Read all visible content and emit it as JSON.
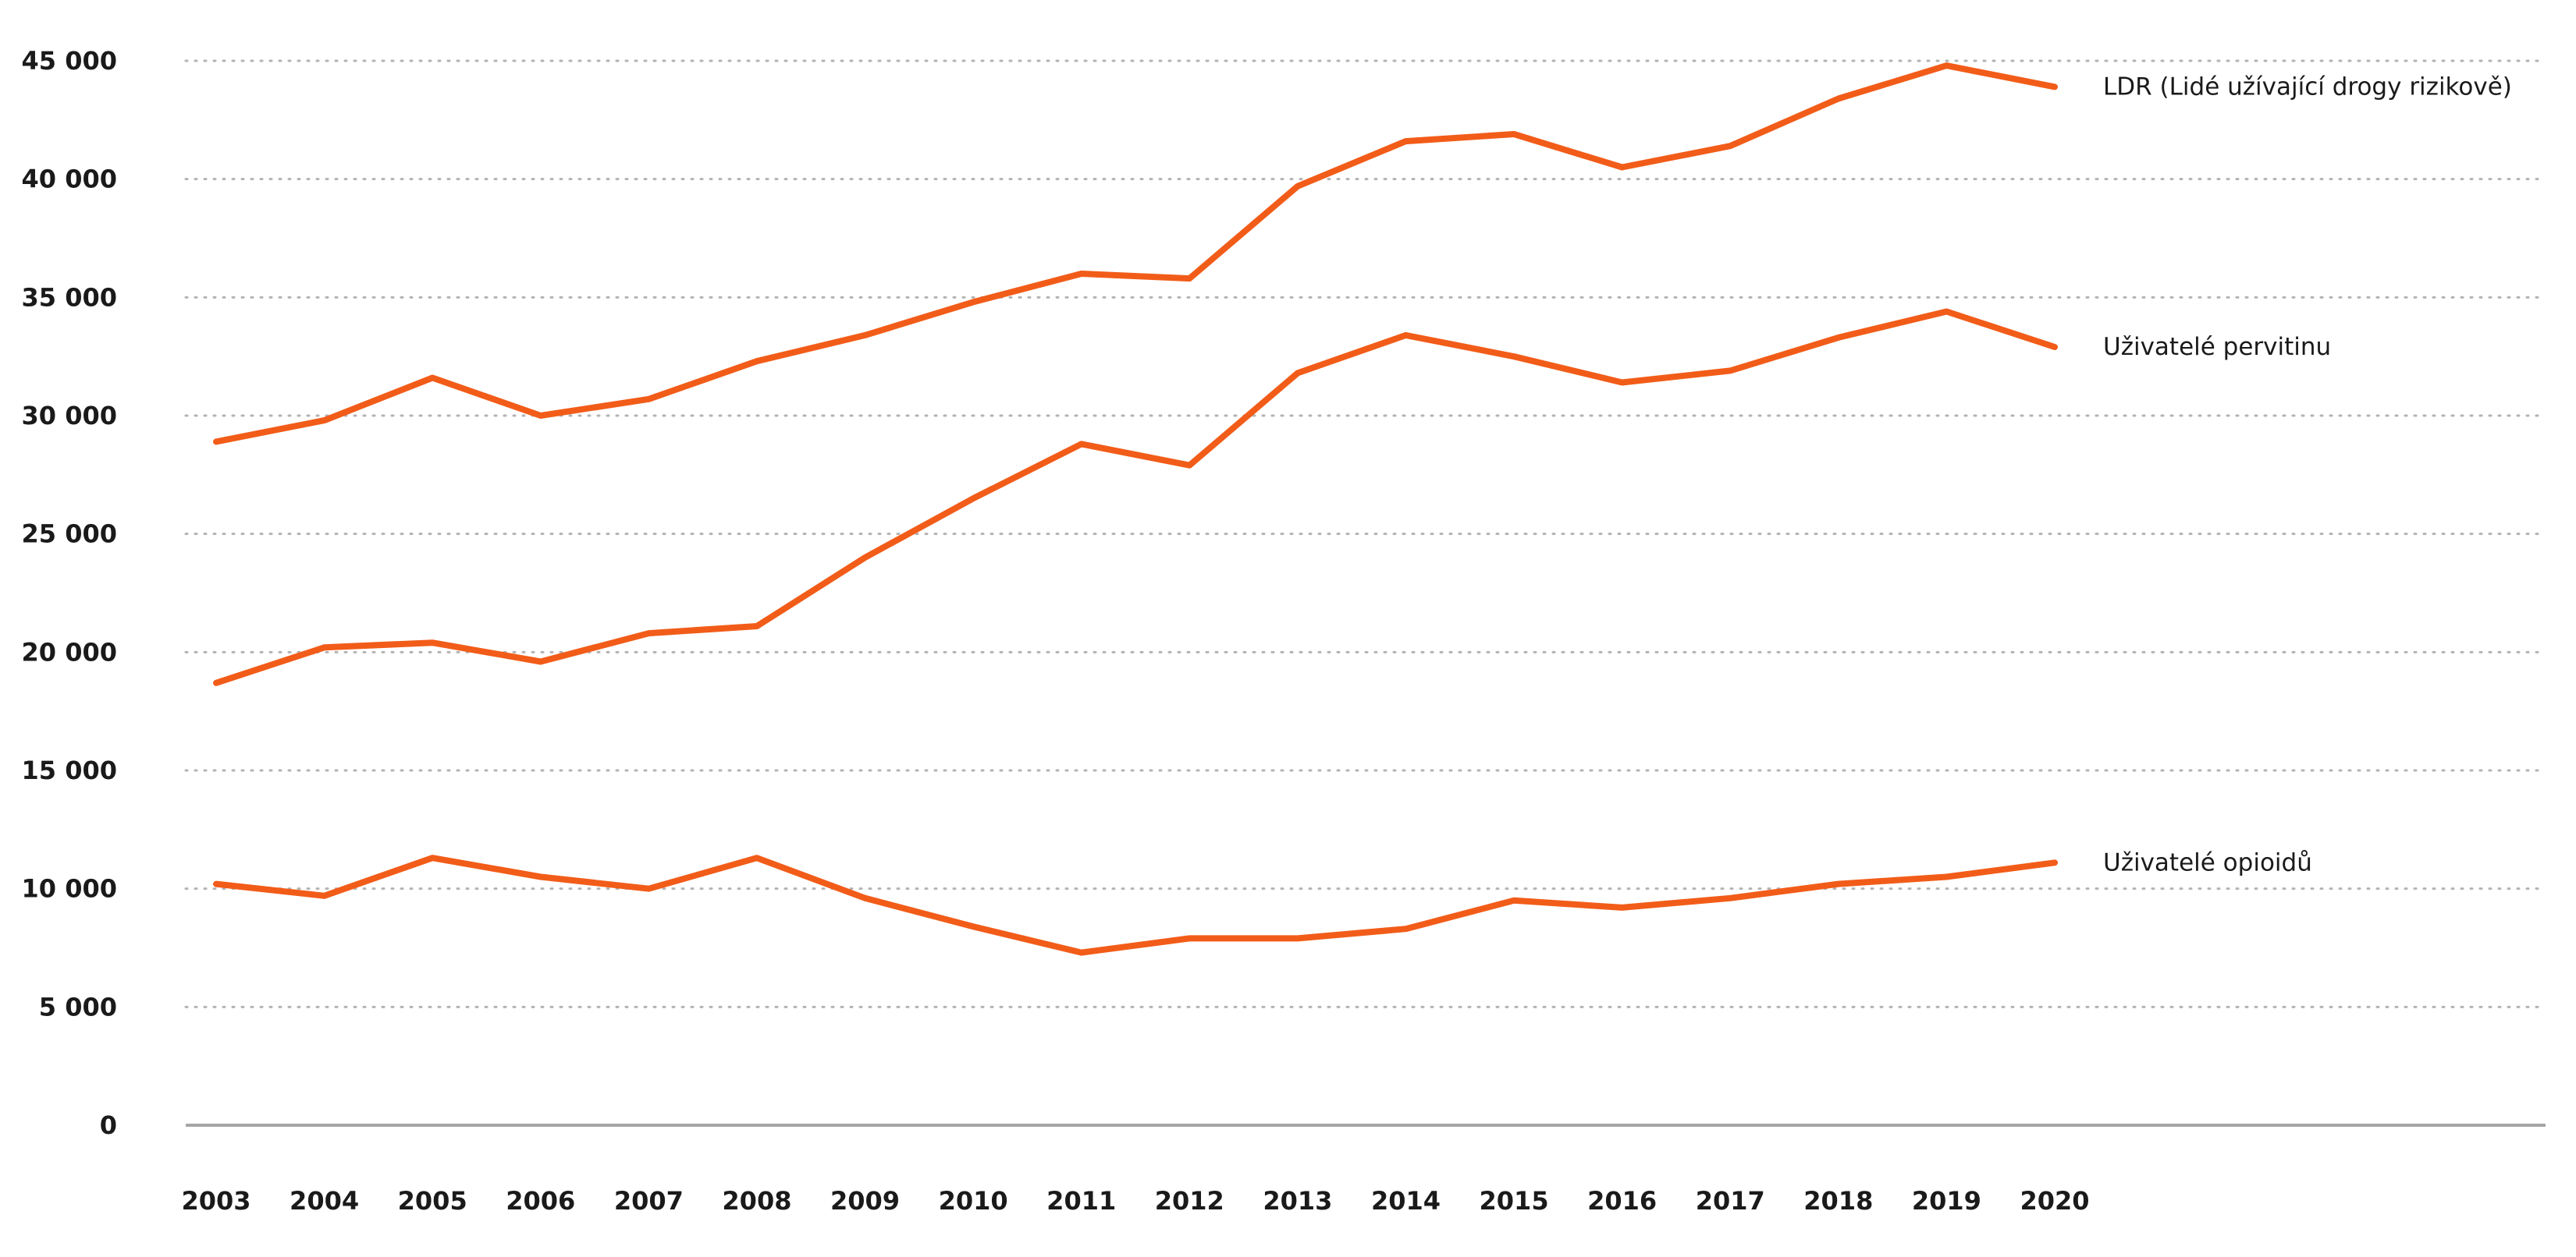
{
  "chart_data": {
    "type": "line",
    "title": "",
    "xlabel": "",
    "ylabel": "",
    "x": [
      2003,
      2004,
      2005,
      2006,
      2007,
      2008,
      2009,
      2010,
      2011,
      2012,
      2013,
      2014,
      2015,
      2016,
      2017,
      2018,
      2019,
      2020
    ],
    "x_tick_labels": [
      "2003",
      "2004",
      "2005",
      "2006",
      "2007",
      "2008",
      "2009",
      "2010",
      "2011",
      "2012",
      "2013",
      "2014",
      "2015",
      "2016",
      "2017",
      "2018",
      "2019",
      "2020"
    ],
    "y_ticks": [
      0,
      5000,
      10000,
      15000,
      20000,
      25000,
      30000,
      35000,
      40000,
      45000
    ],
    "y_tick_labels": [
      "0",
      "5 000",
      "10 000",
      "15 000",
      "20 000",
      "25 000",
      "30 000",
      "35 000",
      "40 000",
      "45 000"
    ],
    "ylim": [
      0,
      45000
    ],
    "grid": "horizontal-dotted",
    "legend": "series labels at right end of lines",
    "line_color": "#f25c19",
    "grid_color": "#b3b3b3",
    "axis_color": "#a6a6a6",
    "text_color": "#1a1a1a",
    "series": [
      {
        "name": "LDR (Lidé užívající drogy rizikově)",
        "values": [
          28900,
          29800,
          31600,
          30000,
          30700,
          32300,
          33400,
          34800,
          36000,
          35800,
          39700,
          41600,
          41900,
          40500,
          41400,
          43400,
          44800,
          43900
        ]
      },
      {
        "name": "Uživatelé pervitinu",
        "values": [
          18700,
          20200,
          20400,
          19600,
          20800,
          21100,
          24000,
          26500,
          28800,
          27900,
          31800,
          33400,
          32500,
          31400,
          31900,
          33300,
          34400,
          32900
        ]
      },
      {
        "name": "Uživatelé opioidů",
        "values": [
          10200,
          9700,
          11300,
          10500,
          10000,
          11300,
          9600,
          8400,
          7300,
          7900,
          7900,
          8300,
          9500,
          9200,
          9600,
          10200,
          10500,
          11100
        ]
      }
    ]
  }
}
